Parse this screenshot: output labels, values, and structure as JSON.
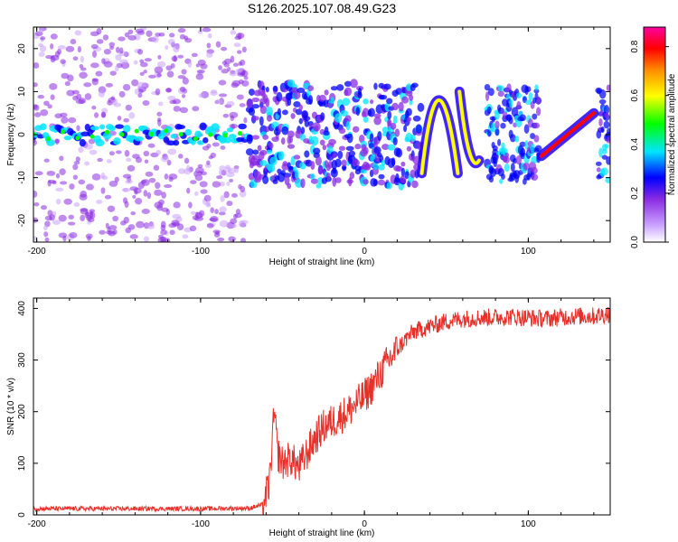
{
  "title": "S126.2025.107.08.49.G23",
  "chart_data": [
    {
      "type": "heatmap",
      "xlabel": "Height of straight line (km)",
      "ylabel": "Frequency (Hz)",
      "xlim": [
        -202,
        150
      ],
      "ylim": [
        -25,
        25
      ],
      "x_ticks": [
        -200,
        -100,
        0,
        100
      ],
      "y_ticks": [
        -20,
        -10,
        0,
        10,
        20
      ],
      "colorbar": {
        "label": "Normalized spectral amplitude",
        "range": [
          0,
          0.88
        ],
        "ticks": [
          0.0,
          0.2,
          0.4,
          0.6,
          0.8
        ],
        "colormap": [
          "#ffffff",
          "#8a2be2",
          "#0000ff",
          "#00e5ff",
          "#00ff00",
          "#ffff00",
          "#ff8c00",
          "#ff0000",
          "#ff00a0"
        ]
      },
      "features": [
        {
          "name": "carrier",
          "x_range": [
            -202,
            -70
          ],
          "y": 0,
          "amplitude": 0.3
        },
        {
          "name": "fragments",
          "x_range": [
            -70,
            35
          ],
          "y_range": [
            -12,
            12
          ],
          "amplitude": 0.25
        },
        {
          "name": "arc_1",
          "x": [
            35,
            45,
            57
          ],
          "y": [
            -9,
            8,
            -9
          ],
          "amplitude": 0.55
        },
        {
          "name": "arc_2",
          "x": [
            58,
            64,
            70
          ],
          "y": [
            10,
            0,
            -6
          ],
          "amplitude": 0.5
        },
        {
          "name": "ramp",
          "x": [
            108,
            140
          ],
          "y": [
            -5,
            5
          ],
          "amplitude": 0.78
        }
      ]
    },
    {
      "type": "line",
      "xlabel": "Height of straight line (km)",
      "ylabel": "SNR (10 * v/v)",
      "xlim": [
        -202,
        150
      ],
      "ylim": [
        0,
        420
      ],
      "x_ticks": [
        -200,
        -100,
        0,
        100
      ],
      "y_ticks": [
        0,
        100,
        200,
        300,
        400
      ],
      "color": "#e8302a",
      "x": [
        -202,
        -150,
        -100,
        -70,
        -62,
        -58,
        -55,
        -53,
        -50,
        -45,
        -40,
        -35,
        -30,
        -25,
        -20,
        -15,
        -10,
        -5,
        0,
        5,
        10,
        15,
        20,
        25,
        30,
        40,
        50,
        60,
        70,
        80,
        90,
        100,
        110,
        120,
        130,
        140,
        150
      ],
      "y": [
        12,
        12,
        12,
        13,
        20,
        60,
        200,
        120,
        100,
        110,
        90,
        120,
        150,
        170,
        180,
        190,
        200,
        215,
        230,
        250,
        275,
        300,
        320,
        340,
        355,
        365,
        375,
        380,
        382,
        383,
        384,
        382,
        380,
        383,
        385,
        385,
        390
      ]
    }
  ]
}
